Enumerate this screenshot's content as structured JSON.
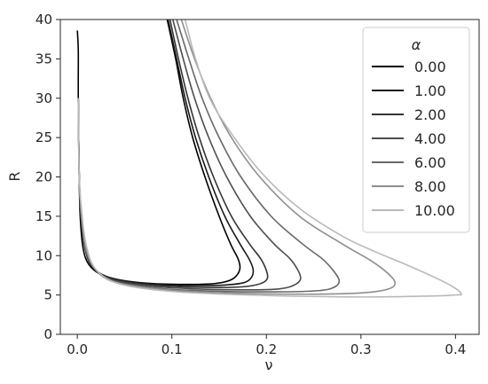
{
  "chart_data": {
    "type": "line",
    "xlabel": "ν",
    "ylabel": "R",
    "xlim": [
      -0.018,
      0.425
    ],
    "ylim": [
      0,
      40
    ],
    "xticks": [
      "0.0",
      "0.1",
      "0.2",
      "0.3",
      "0.4"
    ],
    "xtick_values": [
      0.0,
      0.1,
      0.2,
      0.3,
      0.4
    ],
    "yticks": [
      "0",
      "5",
      "10",
      "15",
      "20",
      "25",
      "30",
      "35",
      "40"
    ],
    "ytick_values": [
      0,
      5,
      10,
      15,
      20,
      25,
      30,
      35,
      40
    ],
    "grid": false,
    "legend": {
      "title": "α",
      "placement": "top-right"
    },
    "series": [
      {
        "name": "0.00",
        "color": "#000000",
        "points": [
          [
            0.0,
            38.6
          ],
          [
            0.001,
            36.0
          ],
          [
            0.001,
            30.0
          ],
          [
            0.002,
            20.0
          ],
          [
            0.003,
            15.0
          ],
          [
            0.006,
            11.0
          ],
          [
            0.012,
            8.9
          ],
          [
            0.025,
            7.6
          ],
          [
            0.045,
            6.9
          ],
          [
            0.08,
            6.45
          ],
          [
            0.12,
            6.35
          ],
          [
            0.145,
            6.45
          ],
          [
            0.16,
            6.8
          ],
          [
            0.168,
            7.4
          ],
          [
            0.172,
            8.4
          ],
          [
            0.17,
            9.6
          ],
          [
            0.162,
            11.5
          ],
          [
            0.15,
            15.0
          ],
          [
            0.135,
            20.0
          ],
          [
            0.122,
            25.0
          ],
          [
            0.112,
            30.0
          ],
          [
            0.104,
            35.0
          ],
          [
            0.095,
            40.0
          ]
        ]
      },
      {
        "name": "1.00",
        "color": "#191919",
        "points": [
          [
            0.001,
            30.0
          ],
          [
            0.002,
            20.0
          ],
          [
            0.004,
            15.0
          ],
          [
            0.008,
            11.0
          ],
          [
            0.015,
            8.7
          ],
          [
            0.03,
            7.4
          ],
          [
            0.055,
            6.7
          ],
          [
            0.09,
            6.3
          ],
          [
            0.13,
            6.2
          ],
          [
            0.16,
            6.3
          ],
          [
            0.177,
            6.6
          ],
          [
            0.184,
            7.2
          ],
          [
            0.186,
            8.2
          ],
          [
            0.182,
            9.5
          ],
          [
            0.172,
            11.5
          ],
          [
            0.156,
            15.0
          ],
          [
            0.139,
            20.0
          ],
          [
            0.125,
            25.0
          ],
          [
            0.114,
            30.0
          ],
          [
            0.105,
            35.0
          ],
          [
            0.096,
            40.0
          ]
        ]
      },
      {
        "name": "2.00",
        "color": "#333333",
        "points": [
          [
            0.001,
            30.0
          ],
          [
            0.002,
            20.0
          ],
          [
            0.004,
            15.0
          ],
          [
            0.008,
            11.0
          ],
          [
            0.016,
            8.6
          ],
          [
            0.032,
            7.2
          ],
          [
            0.06,
            6.5
          ],
          [
            0.1,
            6.1
          ],
          [
            0.15,
            5.95
          ],
          [
            0.18,
            6.1
          ],
          [
            0.195,
            6.5
          ],
          [
            0.201,
            7.1
          ],
          [
            0.2,
            8.1
          ],
          [
            0.194,
            9.6
          ],
          [
            0.182,
            11.5
          ],
          [
            0.163,
            15.0
          ],
          [
            0.144,
            20.0
          ],
          [
            0.129,
            25.0
          ],
          [
            0.117,
            30.0
          ],
          [
            0.107,
            35.0
          ],
          [
            0.098,
            40.0
          ]
        ]
      },
      {
        "name": "4.00",
        "color": "#4d4d4d",
        "points": [
          [
            0.001,
            30.0
          ],
          [
            0.002,
            20.0
          ],
          [
            0.004,
            15.0
          ],
          [
            0.008,
            11.0
          ],
          [
            0.017,
            8.5
          ],
          [
            0.035,
            7.0
          ],
          [
            0.07,
            6.2
          ],
          [
            0.12,
            5.8
          ],
          [
            0.18,
            5.65
          ],
          [
            0.215,
            5.8
          ],
          [
            0.23,
            6.3
          ],
          [
            0.236,
            7.0
          ],
          [
            0.234,
            8.0
          ],
          [
            0.225,
            9.6
          ],
          [
            0.208,
            11.5
          ],
          [
            0.183,
            15.0
          ],
          [
            0.158,
            20.0
          ],
          [
            0.139,
            25.0
          ],
          [
            0.124,
            30.0
          ],
          [
            0.112,
            35.0
          ],
          [
            0.101,
            40.0
          ]
        ]
      },
      {
        "name": "6.00",
        "color": "#686868",
        "points": [
          [
            0.001,
            30.0
          ],
          [
            0.002,
            20.0
          ],
          [
            0.004,
            15.0
          ],
          [
            0.009,
            11.0
          ],
          [
            0.018,
            8.4
          ],
          [
            0.037,
            6.8
          ],
          [
            0.08,
            5.9
          ],
          [
            0.14,
            5.5
          ],
          [
            0.21,
            5.4
          ],
          [
            0.255,
            5.55
          ],
          [
            0.272,
            6.0
          ],
          [
            0.277,
            6.8
          ],
          [
            0.272,
            7.9
          ],
          [
            0.26,
            9.5
          ],
          [
            0.238,
            11.5
          ],
          [
            0.205,
            15.0
          ],
          [
            0.173,
            20.0
          ],
          [
            0.15,
            25.0
          ],
          [
            0.132,
            30.0
          ],
          [
            0.118,
            35.0
          ],
          [
            0.105,
            40.0
          ]
        ]
      },
      {
        "name": "8.00",
        "color": "#8d8d8d",
        "points": [
          [
            0.001,
            30.0
          ],
          [
            0.002,
            20.0
          ],
          [
            0.005,
            15.0
          ],
          [
            0.009,
            11.0
          ],
          [
            0.019,
            8.3
          ],
          [
            0.04,
            6.6
          ],
          [
            0.09,
            5.7
          ],
          [
            0.16,
            5.25
          ],
          [
            0.25,
            5.1
          ],
          [
            0.305,
            5.3
          ],
          [
            0.33,
            5.8
          ],
          [
            0.336,
            6.6
          ],
          [
            0.328,
            7.8
          ],
          [
            0.31,
            9.4
          ],
          [
            0.28,
            11.5
          ],
          [
            0.235,
            15.0
          ],
          [
            0.193,
            20.0
          ],
          [
            0.163,
            25.0
          ],
          [
            0.141,
            30.0
          ],
          [
            0.124,
            35.0
          ],
          [
            0.11,
            40.0
          ]
        ]
      },
      {
        "name": "10.00",
        "color": "#b9b9b9",
        "points": [
          [
            0.001,
            30.0
          ],
          [
            0.002,
            20.0
          ],
          [
            0.005,
            15.0
          ],
          [
            0.01,
            11.0
          ],
          [
            0.02,
            8.2
          ],
          [
            0.045,
            6.4
          ],
          [
            0.1,
            5.45
          ],
          [
            0.18,
            5.0
          ],
          [
            0.29,
            4.75
          ],
          [
            0.365,
            4.85
          ],
          [
            0.4,
            5.0
          ],
          [
            0.406,
            5.2
          ],
          [
            0.395,
            6.2
          ],
          [
            0.375,
            7.4
          ],
          [
            0.345,
            9.0
          ],
          [
            0.315,
            10.5
          ],
          [
            0.28,
            12.5
          ],
          [
            0.235,
            16.0
          ],
          [
            0.195,
            20.5
          ],
          [
            0.163,
            25.5
          ],
          [
            0.14,
            30.0
          ],
          [
            0.125,
            35.0
          ],
          [
            0.114,
            40.0
          ]
        ]
      }
    ]
  }
}
